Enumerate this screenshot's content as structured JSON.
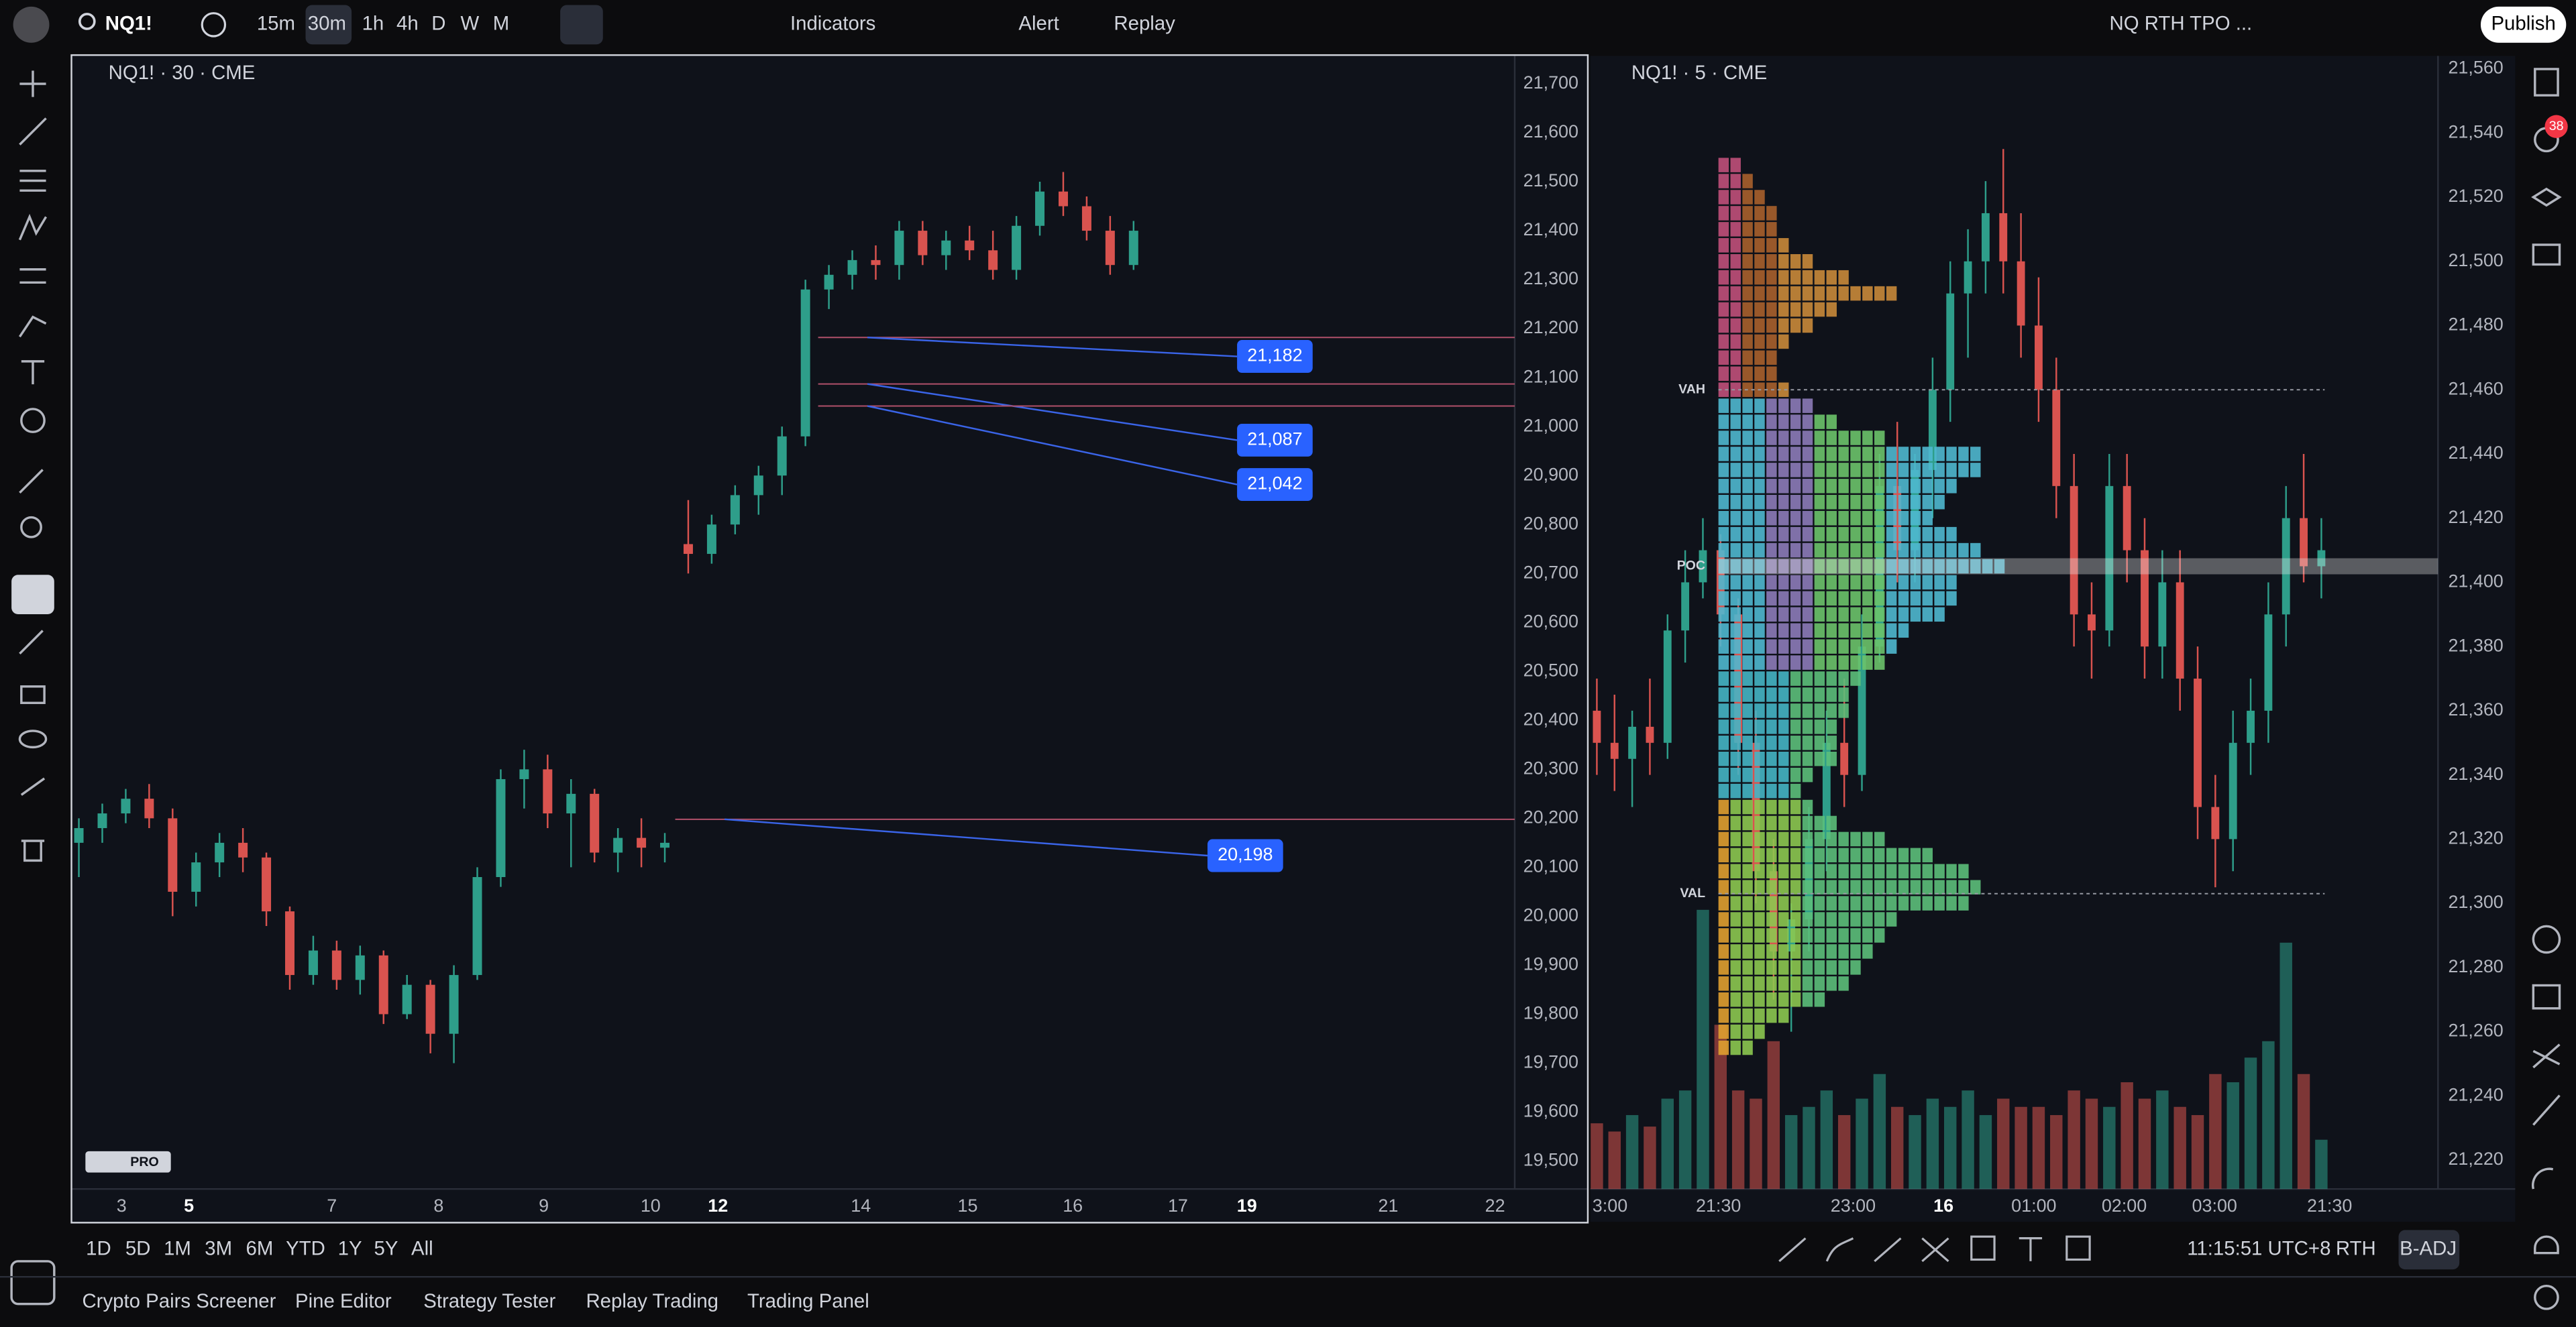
{
  "toolbar": {
    "symbol": "NQ1!",
    "intervals": [
      "15m",
      "30m",
      "1h",
      "4h",
      "D",
      "W",
      "M"
    ],
    "indicators": "Indicators",
    "alert": "Alert",
    "replay": "Replay",
    "layout": "NQ RTH TPO ...",
    "publish": "Publish"
  },
  "sidebar_badge": "38",
  "left_chart": {
    "legend": "NQ1! · 30 · CME",
    "watermark": "PRO",
    "ylim": [
      19443,
      21757
    ],
    "yticks": [
      {
        "value": 21700,
        "label": "21,700"
      },
      {
        "value": 21600,
        "label": "21,600"
      },
      {
        "value": 21500,
        "label": "21,500"
      },
      {
        "value": 21400,
        "label": "21,400"
      },
      {
        "value": 21300,
        "label": "21,300"
      },
      {
        "value": 21200,
        "label": "21,200"
      },
      {
        "value": 21100,
        "label": "21,100"
      },
      {
        "value": 21000,
        "label": "21,000"
      },
      {
        "value": 20900,
        "label": "20,900"
      },
      {
        "value": 20800,
        "label": "20,800"
      },
      {
        "value": 20700,
        "label": "20,700"
      },
      {
        "value": 20600,
        "label": "20,600"
      },
      {
        "value": 20500,
        "label": "20,500"
      },
      {
        "value": 20400,
        "label": "20,400"
      },
      {
        "value": 20300,
        "label": "20,300"
      },
      {
        "value": 20200,
        "label": "20,200"
      },
      {
        "value": 20100,
        "label": "20,100"
      },
      {
        "value": 20000,
        "label": "20,000"
      },
      {
        "value": 19900,
        "label": "19,900"
      },
      {
        "value": 19800,
        "label": "19,800"
      },
      {
        "value": 19700,
        "label": "19,700"
      },
      {
        "value": 19600,
        "label": "19,600"
      },
      {
        "value": 19500,
        "label": "19,500"
      }
    ],
    "xticks": [
      "3",
      "5",
      "7",
      "8",
      "9",
      "10",
      "12",
      "14",
      "15",
      "16",
      "17",
      "19",
      "21",
      "22"
    ],
    "price_labels": [
      {
        "value": 21182,
        "label": "21,182"
      },
      {
        "value": 21087,
        "label": "21,087"
      },
      {
        "value": 21042,
        "label": "21,042"
      },
      {
        "value": 20198,
        "label": "20,198"
      }
    ],
    "candles": [
      [
        20150,
        20200,
        20080,
        20180
      ],
      [
        20180,
        20230,
        20150,
        20210
      ],
      [
        20210,
        20260,
        20190,
        20240
      ],
      [
        20240,
        20270,
        20180,
        20200
      ],
      [
        20200,
        20220,
        20000,
        20050
      ],
      [
        20050,
        20130,
        20020,
        20110
      ],
      [
        20110,
        20170,
        20080,
        20150
      ],
      [
        20150,
        20180,
        20090,
        20120
      ],
      [
        20120,
        20130,
        19980,
        20010
      ],
      [
        20010,
        20020,
        19850,
        19880
      ],
      [
        19880,
        19960,
        19860,
        19930
      ],
      [
        19930,
        19950,
        19850,
        19870
      ],
      [
        19870,
        19940,
        19840,
        19920
      ],
      [
        19920,
        19930,
        19780,
        19800
      ],
      [
        19800,
        19880,
        19790,
        19860
      ],
      [
        19860,
        19870,
        19720,
        19760
      ],
      [
        19760,
        19900,
        19700,
        19880
      ],
      [
        19880,
        20100,
        19870,
        20080
      ],
      [
        20080,
        20300,
        20060,
        20280
      ],
      [
        20280,
        20340,
        20220,
        20300
      ],
      [
        20300,
        20330,
        20180,
        20210
      ],
      [
        20210,
        20280,
        20100,
        20250
      ],
      [
        20250,
        20260,
        20110,
        20130
      ],
      [
        20130,
        20180,
        20090,
        20160
      ],
      [
        20160,
        20200,
        20100,
        20140
      ],
      [
        20140,
        20170,
        20110,
        20150
      ],
      [
        20760,
        20850,
        20700,
        20740
      ],
      [
        20740,
        20820,
        20720,
        20800
      ],
      [
        20800,
        20880,
        20780,
        20860
      ],
      [
        20860,
        20920,
        20820,
        20900
      ],
      [
        20900,
        21000,
        20860,
        20980
      ],
      [
        20980,
        21300,
        20960,
        21280
      ],
      [
        21280,
        21330,
        21240,
        21310
      ],
      [
        21310,
        21360,
        21280,
        21340
      ],
      [
        21340,
        21370,
        21300,
        21330
      ],
      [
        21330,
        21420,
        21300,
        21400
      ],
      [
        21400,
        21420,
        21330,
        21350
      ],
      [
        21350,
        21400,
        21320,
        21380
      ],
      [
        21380,
        21410,
        21340,
        21360
      ],
      [
        21360,
        21400,
        21300,
        21320
      ],
      [
        21320,
        21430,
        21300,
        21410
      ],
      [
        21410,
        21500,
        21390,
        21480
      ],
      [
        21480,
        21520,
        21430,
        21450
      ],
      [
        21450,
        21470,
        21380,
        21400
      ],
      [
        21400,
        21430,
        21310,
        21330
      ],
      [
        21330,
        21420,
        21320,
        21400
      ]
    ]
  },
  "right_chart": {
    "legend": "NQ1! · 5 · CME",
    "ylim": [
      21211,
      21564
    ],
    "yticks": [
      {
        "value": 21560,
        "label": "21,560"
      },
      {
        "value": 21540,
        "label": "21,540"
      },
      {
        "value": 21520,
        "label": "21,520"
      },
      {
        "value": 21500,
        "label": "21,500"
      },
      {
        "value": 21480,
        "label": "21,480"
      },
      {
        "value": 21460,
        "label": "21,460"
      },
      {
        "value": 21440,
        "label": "21,440"
      },
      {
        "value": 21420,
        "label": "21,420"
      },
      {
        "value": 21400,
        "label": "21,400"
      },
      {
        "value": 21380,
        "label": "21,380"
      },
      {
        "value": 21360,
        "label": "21,360"
      },
      {
        "value": 21340,
        "label": "21,340"
      },
      {
        "value": 21320,
        "label": "21,320"
      },
      {
        "value": 21300,
        "label": "21,300"
      },
      {
        "value": 21280,
        "label": "21,280"
      },
      {
        "value": 21260,
        "label": "21,260"
      },
      {
        "value": 21240,
        "label": "21,240"
      },
      {
        "value": 21220,
        "label": "21,220"
      }
    ],
    "xticks": [
      "3:00",
      "21:30",
      "23:00",
      "16",
      "01:00",
      "02:00",
      "03:00",
      "21:30"
    ],
    "profile_markers": [
      {
        "value": 21460,
        "label": "VAH"
      },
      {
        "value": 21405,
        "label": "POC"
      },
      {
        "value": 21303,
        "label": "VAL"
      }
    ],
    "profile": {
      "prices": [
        21530,
        21525,
        21520,
        21515,
        21510,
        21505,
        21500,
        21495,
        21490,
        21485,
        21480,
        21475,
        21470,
        21465,
        21460,
        21455,
        21450,
        21445,
        21440,
        21435,
        21430,
        21425,
        21420,
        21415,
        21410,
        21405,
        21400,
        21395,
        21390,
        21385,
        21380,
        21375,
        21370,
        21365,
        21360,
        21355,
        21350,
        21345,
        21340,
        21335,
        21330,
        21325,
        21320,
        21315,
        21310,
        21305,
        21300,
        21295,
        21290,
        21285,
        21280,
        21275,
        21270,
        21265,
        21260,
        21255
      ],
      "counts": [
        2,
        3,
        4,
        5,
        5,
        6,
        8,
        11,
        15,
        10,
        8,
        6,
        5,
        5,
        6,
        8,
        10,
        14,
        22,
        22,
        20,
        19,
        18,
        20,
        22,
        24,
        20,
        20,
        19,
        16,
        15,
        14,
        12,
        11,
        11,
        10,
        10,
        10,
        8,
        7,
        8,
        10,
        14,
        18,
        21,
        22,
        21,
        15,
        14,
        13,
        12,
        11,
        9,
        6,
        4,
        3
      ]
    },
    "candles": [
      [
        21360,
        21370,
        21340,
        21350
      ],
      [
        21350,
        21365,
        21335,
        21345
      ],
      [
        21345,
        21360,
        21330,
        21355
      ],
      [
        21355,
        21370,
        21340,
        21350
      ],
      [
        21350,
        21390,
        21345,
        21385
      ],
      [
        21385,
        21410,
        21375,
        21400
      ],
      [
        21400,
        21420,
        21395,
        21410
      ],
      [
        21410,
        21415,
        21380,
        21390
      ],
      [
        21390,
        21395,
        21340,
        21350
      ],
      [
        21350,
        21360,
        21300,
        21310
      ],
      [
        21310,
        21320,
        21270,
        21285
      ],
      [
        21285,
        21300,
        21260,
        21295
      ],
      [
        21295,
        21330,
        21285,
        21320
      ],
      [
        21320,
        21360,
        21310,
        21350
      ],
      [
        21350,
        21370,
        21330,
        21340
      ],
      [
        21340,
        21390,
        21335,
        21380
      ],
      [
        21380,
        21440,
        21375,
        21430
      ],
      [
        21430,
        21450,
        21400,
        21410
      ],
      [
        21410,
        21440,
        21400,
        21435
      ],
      [
        21435,
        21470,
        21420,
        21460
      ],
      [
        21460,
        21500,
        21450,
        21490
      ],
      [
        21490,
        21510,
        21470,
        21500
      ],
      [
        21500,
        21525,
        21490,
        21515
      ],
      [
        21515,
        21535,
        21490,
        21500
      ],
      [
        21500,
        21515,
        21470,
        21480
      ],
      [
        21480,
        21495,
        21450,
        21460
      ],
      [
        21460,
        21470,
        21420,
        21430
      ],
      [
        21430,
        21440,
        21380,
        21390
      ],
      [
        21390,
        21400,
        21370,
        21385
      ],
      [
        21385,
        21440,
        21380,
        21430
      ],
      [
        21430,
        21440,
        21400,
        21410
      ],
      [
        21410,
        21420,
        21370,
        21380
      ],
      [
        21380,
        21410,
        21370,
        21400
      ],
      [
        21400,
        21410,
        21360,
        21370
      ],
      [
        21370,
        21380,
        21320,
        21330
      ],
      [
        21330,
        21340,
        21305,
        21320
      ],
      [
        21320,
        21360,
        21310,
        21350
      ],
      [
        21350,
        21370,
        21340,
        21360
      ],
      [
        21360,
        21400,
        21350,
        21390
      ],
      [
        21390,
        21430,
        21380,
        21420
      ],
      [
        21420,
        21440,
        21400,
        21405
      ],
      [
        21405,
        21420,
        21395,
        21410
      ]
    ],
    "volumes": [
      40,
      35,
      45,
      38,
      55,
      60,
      170,
      100,
      60,
      55,
      90,
      45,
      50,
      60,
      45,
      55,
      70,
      50,
      45,
      55,
      50,
      60,
      45,
      55,
      50,
      50,
      45,
      60,
      55,
      50,
      65,
      55,
      60,
      50,
      45,
      70,
      65,
      80,
      90,
      150,
      70,
      30
    ]
  },
  "range_bar": {
    "ranges": [
      "1D",
      "5D",
      "1M",
      "3M",
      "6M",
      "YTD",
      "1Y",
      "5Y",
      "All"
    ],
    "clock": "11:15:51 UTC+8",
    "session": "RTH",
    "adjustment": "B-ADJ"
  },
  "panel_tabs": [
    "Crypto Pairs Screener",
    "Pine Editor",
    "Strategy Tester",
    "Replay Trading",
    "Trading Panel"
  ]
}
